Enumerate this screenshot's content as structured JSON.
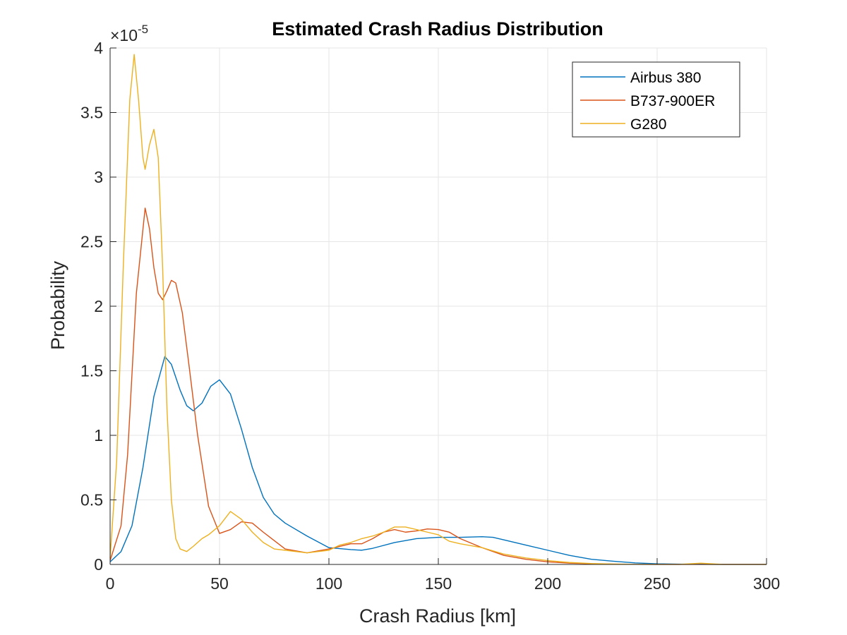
{
  "chart_data": {
    "type": "line",
    "title": "Estimated Crash Radius Distribution",
    "xlabel": "Crash Radius [km]",
    "ylabel": "Probability",
    "exponent_label": "×10",
    "exponent_power": "-5",
    "xlim": [
      0,
      300
    ],
    "ylim": [
      0,
      4
    ],
    "xticks": [
      0,
      50,
      100,
      150,
      200,
      250,
      300
    ],
    "yticks": [
      0,
      0.5,
      1,
      1.5,
      2,
      2.5,
      3,
      3.5,
      4
    ],
    "xtick_labels": [
      "0",
      "50",
      "100",
      "150",
      "200",
      "250",
      "300"
    ],
    "ytick_labels": [
      "0",
      "0.5",
      "1",
      "1.5",
      "2",
      "2.5",
      "3",
      "3.5",
      "4"
    ],
    "grid": true,
    "legend_position": "top-right",
    "series": [
      {
        "name": "Airbus 380",
        "color": "#0072BD",
        "x": [
          0,
          5,
          10,
          15,
          20,
          25,
          28,
          32,
          35,
          38,
          42,
          46,
          50,
          55,
          60,
          65,
          70,
          75,
          80,
          90,
          100,
          110,
          115,
          120,
          130,
          140,
          150,
          160,
          170,
          175,
          180,
          190,
          200,
          210,
          220,
          230,
          240,
          250,
          260,
          270,
          280,
          290,
          300
        ],
        "y": [
          0.02,
          0.1,
          0.3,
          0.75,
          1.3,
          1.61,
          1.55,
          1.35,
          1.23,
          1.19,
          1.25,
          1.38,
          1.43,
          1.32,
          1.05,
          0.75,
          0.52,
          0.39,
          0.32,
          0.22,
          0.13,
          0.115,
          0.11,
          0.125,
          0.17,
          0.2,
          0.21,
          0.21,
          0.215,
          0.21,
          0.19,
          0.15,
          0.11,
          0.07,
          0.04,
          0.025,
          0.012,
          0.005,
          0.002,
          0.001,
          0.0005,
          0.0002,
          0.0001
        ]
      },
      {
        "name": "B737-900ER",
        "color": "#D95319",
        "x": [
          0,
          5,
          8,
          12,
          16,
          18,
          20,
          22,
          24,
          26,
          28,
          30,
          33,
          36,
          40,
          45,
          50,
          55,
          60,
          65,
          70,
          80,
          90,
          100,
          110,
          115,
          120,
          125,
          130,
          135,
          140,
          145,
          150,
          155,
          160,
          170,
          180,
          190,
          200,
          210,
          220,
          230,
          240,
          250,
          260,
          270,
          280,
          290,
          300
        ],
        "y": [
          0.03,
          0.3,
          0.85,
          2.1,
          2.76,
          2.6,
          2.3,
          2.1,
          2.05,
          2.12,
          2.2,
          2.18,
          1.95,
          1.55,
          1.0,
          0.45,
          0.24,
          0.27,
          0.33,
          0.32,
          0.25,
          0.12,
          0.09,
          0.12,
          0.16,
          0.16,
          0.2,
          0.25,
          0.27,
          0.25,
          0.26,
          0.275,
          0.27,
          0.25,
          0.2,
          0.13,
          0.07,
          0.04,
          0.02,
          0.01,
          0.005,
          0.002,
          0.001,
          0.0005,
          0.0002,
          0.0001,
          0.0001,
          0.0001,
          0.0001
        ]
      },
      {
        "name": "G280",
        "color": "#EDB120",
        "x": [
          0,
          3,
          6,
          9,
          11,
          13,
          15,
          16,
          18,
          20,
          22,
          24,
          26,
          28,
          30,
          32,
          35,
          38,
          42,
          45,
          50,
          55,
          60,
          65,
          70,
          75,
          80,
          90,
          100,
          105,
          110,
          115,
          120,
          125,
          130,
          135,
          140,
          145,
          150,
          155,
          160,
          170,
          180,
          190,
          200,
          210,
          220,
          230,
          240,
          250,
          260,
          270,
          280,
          290,
          300
        ],
        "y": [
          0.05,
          0.8,
          2.3,
          3.6,
          3.95,
          3.6,
          3.15,
          3.06,
          3.25,
          3.37,
          3.15,
          2.3,
          1.2,
          0.5,
          0.2,
          0.12,
          0.1,
          0.14,
          0.2,
          0.23,
          0.3,
          0.41,
          0.35,
          0.25,
          0.17,
          0.12,
          0.11,
          0.09,
          0.11,
          0.15,
          0.17,
          0.2,
          0.22,
          0.25,
          0.29,
          0.29,
          0.27,
          0.25,
          0.23,
          0.18,
          0.16,
          0.13,
          0.08,
          0.05,
          0.03,
          0.015,
          0.007,
          0.003,
          0.001,
          0.0005,
          0.0003,
          0.01,
          0.0002,
          0.0001,
          0.0001
        ]
      }
    ]
  }
}
